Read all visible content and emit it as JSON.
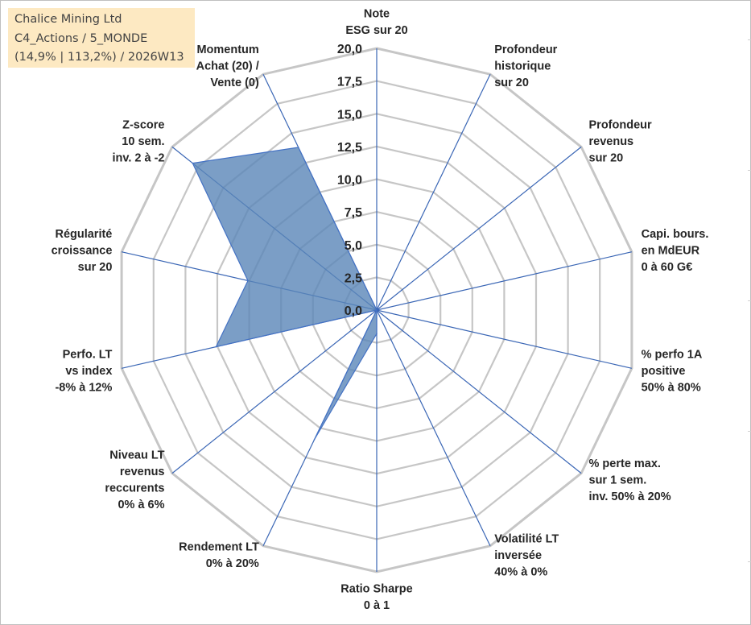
{
  "info_box": {
    "line1": "Chalice Mining Ltd",
    "line2": "C4_Actions / 5_MONDE",
    "line3": "(14,9% | 113,2%) / 2026W13"
  },
  "colors": {
    "grid": "#c6c6c6",
    "spoke": "#3a66b5",
    "area_fill": "#5a86b8",
    "area_stroke": "#4472c4",
    "text": "#262626",
    "info_bg": "#fde9c2"
  },
  "chart_data": {
    "type": "radar",
    "title": "",
    "scale": {
      "min": 0,
      "max": 20,
      "step": 2.5
    },
    "tick_labels": [
      "0,0",
      "2,5",
      "5,0",
      "7,5",
      "10,0",
      "12,5",
      "15,0",
      "17,5",
      "20,0"
    ],
    "categories": [
      [
        "Note",
        "ESG sur 20"
      ],
      [
        "Profondeur",
        "historique",
        "sur 20"
      ],
      [
        "Profondeur",
        "revenus",
        "sur 20"
      ],
      [
        "Capi. bours.",
        "en MdEUR",
        "0 à 60 G€"
      ],
      [
        "% perfo 1A",
        "positive",
        "50% à 80%"
      ],
      [
        "% perte max.",
        "sur 1 sem.",
        "inv. 50% à 20%"
      ],
      [
        "Volatilité LT",
        "inversée",
        "40% à 0%"
      ],
      [
        "Ratio Sharpe",
        "0 à 1"
      ],
      [
        "Rendement LT",
        "0% à 20%"
      ],
      [
        "Niveau LT",
        "revenus",
        "reccurents",
        "0% à 6%"
      ],
      [
        "Perfo. LT",
        "vs index",
        "-8% à 12%"
      ],
      [
        "Régularité",
        "croissance",
        "sur 20"
      ],
      [
        "Z-score",
        "10 sem.",
        "inv. 2 à -2"
      ],
      [
        "Momentum",
        "Achat (20) /",
        "Vente (0)"
      ]
    ],
    "series": [
      {
        "values": [
          0,
          0,
          0,
          0,
          0,
          0,
          0,
          1.8,
          11.0,
          0,
          12.6,
          10.1,
          18.0,
          13.8
        ]
      }
    ],
    "legend": "none",
    "grid": true
  }
}
